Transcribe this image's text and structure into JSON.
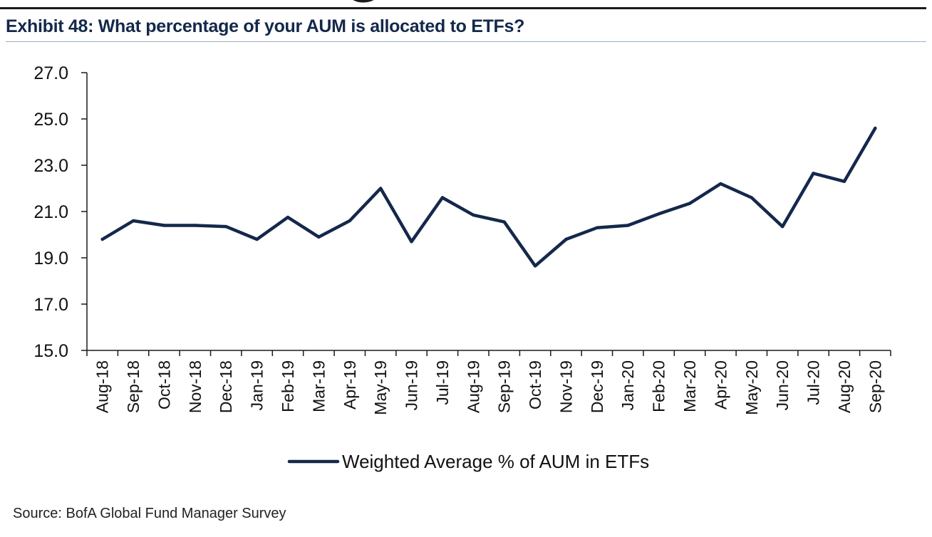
{
  "header": {
    "title": "Exhibit 48: What percentage of your AUM is allocated to ETFs?"
  },
  "footer": {
    "source": "Source: BofA Global Fund Manager Survey"
  },
  "chart_data": {
    "type": "line",
    "title": "Exhibit 48: What percentage of your AUM is allocated to ETFs?",
    "xlabel": "",
    "ylabel": "",
    "ylim": [
      15.0,
      27.0
    ],
    "yticks": [
      "15.0",
      "17.0",
      "19.0",
      "21.0",
      "23.0",
      "25.0",
      "27.0"
    ],
    "grid": false,
    "legend_position": "bottom",
    "line_color": "#14284b",
    "categories": [
      "Aug-18",
      "Sep-18",
      "Oct-18",
      "Nov-18",
      "Dec-18",
      "Jan-19",
      "Feb-19",
      "Mar-19",
      "Apr-19",
      "May-19",
      "Jun-19",
      "Jul-19",
      "Aug-19",
      "Sep-19",
      "Oct-19",
      "Nov-19",
      "Dec-19",
      "Jan-20",
      "Feb-20",
      "Mar-20",
      "Apr-20",
      "May-20",
      "Jun-20",
      "Jul-20",
      "Aug-20",
      "Sep-20"
    ],
    "series": [
      {
        "name": "Weighted Average % of AUM in ETFs",
        "values": [
          19.8,
          20.6,
          20.4,
          20.4,
          20.35,
          19.8,
          20.75,
          19.9,
          20.6,
          22.0,
          19.7,
          21.6,
          20.85,
          20.55,
          18.65,
          19.8,
          20.3,
          20.4,
          20.9,
          21.35,
          22.2,
          21.6,
          20.35,
          22.65,
          22.3,
          24.6
        ]
      }
    ]
  }
}
